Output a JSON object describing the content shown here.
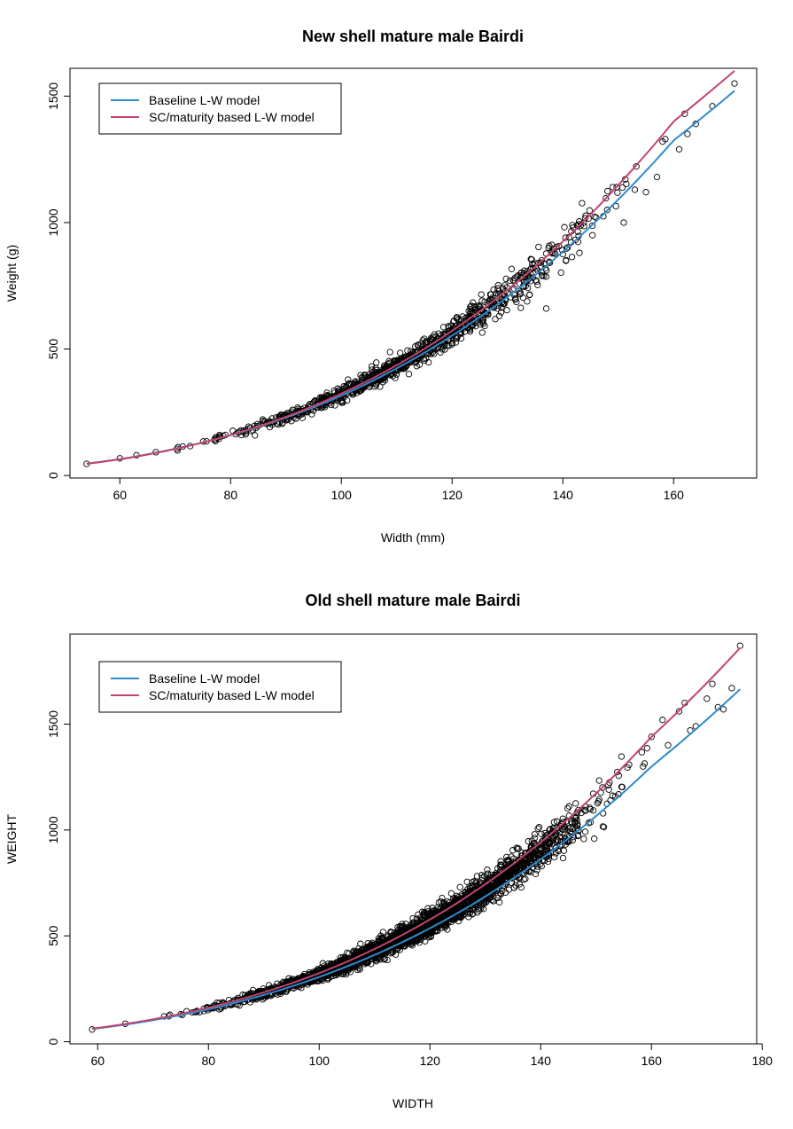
{
  "chart_data": [
    {
      "type": "scatter",
      "title": "New shell mature male Bairdi",
      "xlabel": "Width (mm)",
      "ylabel": "Weight (g)",
      "xlim": [
        51,
        175
      ],
      "ylim": [
        -10,
        1610
      ],
      "x_ticks": [
        60,
        80,
        100,
        120,
        140,
        160
      ],
      "y_ticks": [
        0,
        500,
        1000,
        1500
      ],
      "x_tick_labels": [
        "60",
        "80",
        "100",
        "120",
        "140",
        "160"
      ],
      "y_tick_labels": [
        "0",
        "500",
        "1000",
        "1500"
      ],
      "grid": false,
      "legend_position": "top-left",
      "points": {
        "n": 950,
        "x_range": [
          54,
          171
        ],
        "outliers": [
          [
            54.0,
            46
          ],
          [
            60.0,
            68
          ],
          [
            63.0,
            80
          ],
          [
            66.5,
            92
          ],
          [
            70.5,
            112
          ],
          [
            78.0,
            160
          ],
          [
            126.5,
            640
          ],
          [
            133.0,
            800
          ],
          [
            134.0,
            715
          ],
          [
            137.0,
            660
          ],
          [
            140.0,
            875
          ],
          [
            143.0,
            880
          ],
          [
            146.0,
            1020
          ],
          [
            148.0,
            1050
          ],
          [
            149.0,
            1140
          ],
          [
            151.0,
            1000
          ],
          [
            153.0,
            1130
          ],
          [
            155.0,
            1120
          ],
          [
            157.0,
            1180
          ],
          [
            158.0,
            1320
          ],
          [
            158.5,
            1330
          ],
          [
            161.0,
            1290
          ],
          [
            162.0,
            1430
          ],
          [
            162.5,
            1350
          ],
          [
            164.0,
            1390
          ],
          [
            167.0,
            1460
          ],
          [
            171.0,
            1550
          ]
        ],
        "noise_sd_frac": 0.045
      },
      "series": [
        {
          "name": "Baseline L-W model",
          "color": "#2E8BCC",
          "x": [
            54,
            60,
            70,
            80,
            90,
            100,
            110,
            120,
            130,
            140,
            150,
            160,
            171
          ],
          "y": [
            47,
            65,
            106,
            159,
            229,
            316,
            424,
            553,
            706,
            885,
            1091,
            1325,
            1521
          ]
        },
        {
          "name": "SC/maturity based L-W model",
          "color": "#C2436E",
          "x": [
            54,
            60,
            70,
            80,
            90,
            100,
            110,
            120,
            130,
            140,
            150,
            160,
            171
          ],
          "y": [
            46,
            64,
            105,
            160,
            232,
            324,
            436,
            572,
            734,
            925,
            1148,
            1400,
            1600
          ]
        }
      ]
    },
    {
      "type": "scatter",
      "title": "Old shell mature male Bairdi",
      "xlabel": "WIDTH",
      "ylabel": "WEIGHT",
      "xlim": [
        55,
        179
      ],
      "ylim": [
        -10,
        1925
      ],
      "x_ticks": [
        60,
        80,
        100,
        120,
        140,
        160,
        180
      ],
      "y_ticks": [
        0,
        500,
        1000,
        1500
      ],
      "x_tick_labels": [
        "60",
        "80",
        "100",
        "120",
        "140",
        "160",
        "180"
      ],
      "y_tick_labels": [
        "0",
        "500",
        "1000",
        "1500"
      ],
      "grid": false,
      "legend_position": "top-left",
      "points": {
        "n": 2600,
        "x_range": [
          59,
          176
        ],
        "outliers": [
          [
            59.0,
            58
          ],
          [
            65.0,
            85
          ],
          [
            72.0,
            120
          ],
          [
            75.0,
            130
          ],
          [
            160.0,
            1440
          ],
          [
            162.0,
            1520
          ],
          [
            163.0,
            1400
          ],
          [
            165.0,
            1560
          ],
          [
            166.0,
            1600
          ],
          [
            167.0,
            1470
          ],
          [
            168.0,
            1490
          ],
          [
            170.0,
            1620
          ],
          [
            171.0,
            1690
          ],
          [
            172.0,
            1580
          ],
          [
            173.0,
            1570
          ],
          [
            174.5,
            1670
          ],
          [
            176.0,
            1870
          ]
        ],
        "noise_sd_frac": 0.05
      },
      "series": [
        {
          "name": "Baseline L-W model",
          "color": "#2E8BCC",
          "x": [
            59,
            70,
            80,
            90,
            100,
            110,
            120,
            130,
            140,
            150,
            160,
            176
          ],
          "y": [
            60,
            102,
            153,
            221,
            306,
            410,
            536,
            686,
            862,
            1066,
            1300,
            1665
          ]
        },
        {
          "name": "SC/maturity based L-W model",
          "color": "#C2436E",
          "x": [
            59,
            70,
            80,
            90,
            100,
            110,
            120,
            130,
            140,
            150,
            160,
            176
          ],
          "y": [
            62,
            106,
            161,
            233,
            324,
            438,
            577,
            744,
            942,
            1173,
            1440,
            1860
          ]
        }
      ]
    }
  ]
}
